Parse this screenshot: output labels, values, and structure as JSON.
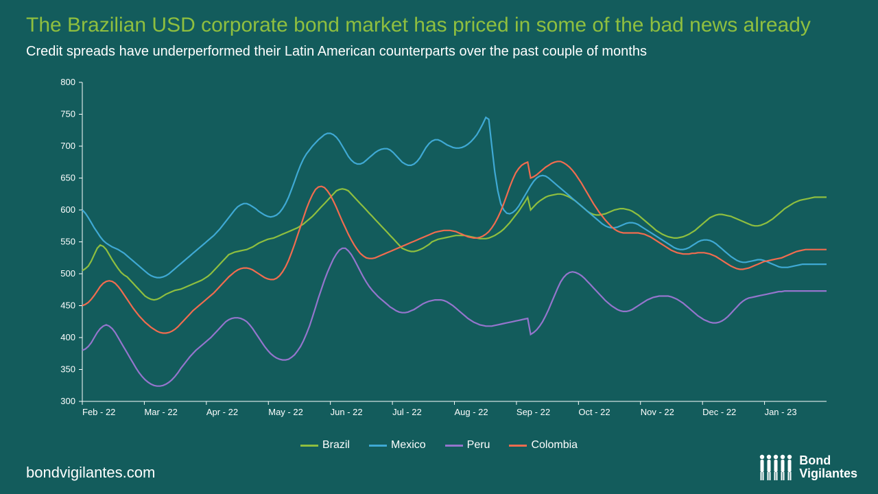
{
  "title": "The Brazilian USD corporate bond market has priced in some of the bad news already",
  "subtitle": "Credit spreads have underperformed their Latin American counterparts over the past couple of months",
  "footer_url": "bondvigilantes.com",
  "brand_line1": "Bond",
  "brand_line2": "Vigilantes",
  "chart": {
    "type": "line",
    "background_color": "#135c5c",
    "text_color": "#ffffff",
    "title_color": "#8fbf3f",
    "axis_color": "#ffffff",
    "ylim": [
      300,
      800
    ],
    "ytick_step": 50,
    "xticks": [
      "Feb - 22",
      "Mar - 22",
      "Apr - 22",
      "May - 22",
      "Jun - 22",
      "Jul - 22",
      "Aug - 22",
      "Sep - 22",
      "Oct - 22",
      "Nov - 22",
      "Dec - 22",
      "Jan - 23"
    ],
    "x_count": 250,
    "line_width": 2.2,
    "series": [
      {
        "name": "Brazil",
        "color": "#8fbf3f",
        "values": [
          505,
          508,
          512,
          520,
          530,
          540,
          545,
          543,
          538,
          530,
          522,
          515,
          508,
          502,
          498,
          495,
          490,
          485,
          480,
          475,
          470,
          465,
          462,
          460,
          459,
          460,
          462,
          465,
          468,
          470,
          472,
          474,
          475,
          476,
          478,
          480,
          482,
          484,
          486,
          488,
          490,
          493,
          496,
          500,
          505,
          510,
          515,
          520,
          525,
          530,
          532,
          534,
          535,
          536,
          537,
          538,
          540,
          542,
          545,
          548,
          550,
          552,
          554,
          555,
          556,
          558,
          560,
          562,
          564,
          566,
          568,
          570,
          572,
          575,
          578,
          582,
          586,
          590,
          595,
          600,
          605,
          610,
          615,
          620,
          625,
          630,
          632,
          633,
          632,
          630,
          625,
          620,
          615,
          610,
          605,
          600,
          595,
          590,
          585,
          580,
          575,
          570,
          565,
          560,
          555,
          550,
          545,
          540,
          538,
          536,
          535,
          535,
          536,
          538,
          540,
          543,
          546,
          550,
          552,
          554,
          555,
          556,
          557,
          558,
          559,
          560,
          560,
          560,
          560,
          559,
          558,
          557,
          556,
          555,
          555,
          555,
          556,
          558,
          560,
          563,
          566,
          570,
          575,
          580,
          586,
          592,
          598,
          605,
          612,
          620,
          600,
          605,
          610,
          614,
          617,
          620,
          622,
          623,
          624,
          625,
          625,
          624,
          622,
          620,
          617,
          614,
          610,
          606,
          602,
          598,
          595,
          593,
          592,
          592,
          593,
          594,
          596,
          598,
          600,
          601,
          602,
          602,
          601,
          600,
          598,
          595,
          592,
          588,
          584,
          580,
          576,
          572,
          568,
          565,
          562,
          560,
          558,
          557,
          556,
          556,
          557,
          558,
          560,
          562,
          565,
          568,
          572,
          576,
          580,
          584,
          588,
          590,
          592,
          593,
          593,
          592,
          591,
          590,
          588,
          586,
          584,
          582,
          580,
          578,
          576,
          575,
          575,
          576,
          578,
          580,
          583,
          586,
          590,
          594,
          598,
          602,
          605,
          608,
          611,
          613,
          615,
          616,
          617,
          618,
          619,
          620,
          620,
          620,
          620,
          620
        ]
      },
      {
        "name": "Mexico",
        "color": "#3fa9d4",
        "values": [
          600,
          595,
          588,
          580,
          572,
          565,
          558,
          552,
          548,
          545,
          542,
          540,
          538,
          535,
          532,
          528,
          524,
          520,
          516,
          512,
          508,
          504,
          500,
          497,
          495,
          494,
          494,
          495,
          497,
          500,
          504,
          508,
          512,
          516,
          520,
          524,
          528,
          532,
          536,
          540,
          544,
          548,
          552,
          556,
          560,
          565,
          570,
          576,
          582,
          588,
          594,
          600,
          605,
          608,
          610,
          610,
          608,
          605,
          602,
          598,
          595,
          592,
          590,
          589,
          590,
          592,
          596,
          602,
          610,
          620,
          632,
          645,
          658,
          670,
          680,
          688,
          694,
          700,
          705,
          710,
          714,
          718,
          720,
          720,
          718,
          714,
          708,
          700,
          692,
          684,
          678,
          674,
          672,
          672,
          674,
          678,
          682,
          686,
          690,
          693,
          695,
          696,
          696,
          694,
          690,
          685,
          680,
          675,
          672,
          670,
          670,
          672,
          676,
          682,
          690,
          698,
          704,
          708,
          710,
          710,
          708,
          705,
          702,
          700,
          698,
          697,
          697,
          698,
          700,
          703,
          707,
          712,
          718,
          726,
          735,
          745,
          742,
          700,
          660,
          630,
          610,
          600,
          595,
          594,
          596,
          600,
          606,
          614,
          622,
          630,
          638,
          645,
          650,
          653,
          654,
          653,
          650,
          646,
          642,
          638,
          634,
          630,
          626,
          622,
          618,
          614,
          610,
          606,
          602,
          598,
          594,
          590,
          586,
          582,
          578,
          575,
          573,
          572,
          572,
          573,
          575,
          577,
          579,
          580,
          580,
          579,
          577,
          574,
          571,
          568,
          565,
          562,
          559,
          556,
          553,
          550,
          547,
          544,
          541,
          539,
          538,
          538,
          539,
          541,
          544,
          547,
          550,
          552,
          553,
          553,
          552,
          550,
          547,
          543,
          539,
          535,
          531,
          527,
          524,
          521,
          519,
          518,
          518,
          519,
          520,
          521,
          522,
          522,
          521,
          519,
          517,
          515,
          513,
          511,
          510,
          510,
          510,
          511,
          512,
          513,
          514,
          515,
          515,
          515,
          515,
          515,
          515,
          515,
          515,
          515
        ]
      },
      {
        "name": "Peru",
        "color": "#9575cd",
        "values": [
          380,
          382,
          386,
          392,
          400,
          408,
          414,
          418,
          420,
          418,
          414,
          408,
          400,
          392,
          384,
          376,
          368,
          360,
          352,
          345,
          339,
          334,
          330,
          327,
          325,
          324,
          324,
          325,
          327,
          330,
          334,
          339,
          345,
          352,
          358,
          364,
          370,
          375,
          380,
          384,
          388,
          392,
          396,
          400,
          405,
          410,
          415,
          420,
          425,
          428,
          430,
          431,
          431,
          430,
          428,
          425,
          420,
          414,
          407,
          400,
          393,
          386,
          380,
          375,
          371,
          368,
          366,
          365,
          365,
          366,
          369,
          373,
          379,
          386,
          395,
          406,
          418,
          432,
          447,
          462,
          476,
          490,
          502,
          513,
          523,
          531,
          537,
          540,
          540,
          536,
          530,
          522,
          513,
          504,
          495,
          487,
          480,
          474,
          469,
          464,
          460,
          456,
          452,
          448,
          445,
          442,
          440,
          439,
          439,
          440,
          442,
          444,
          447,
          450,
          453,
          455,
          457,
          458,
          459,
          459,
          459,
          458,
          456,
          453,
          450,
          446,
          442,
          438,
          434,
          430,
          427,
          424,
          422,
          420,
          419,
          418,
          418,
          418,
          419,
          420,
          421,
          422,
          423,
          424,
          425,
          426,
          427,
          428,
          429,
          430,
          405,
          408,
          412,
          418,
          425,
          434,
          444,
          455,
          466,
          477,
          487,
          494,
          499,
          502,
          503,
          502,
          500,
          497,
          493,
          488,
          483,
          478,
          473,
          468,
          463,
          458,
          454,
          450,
          447,
          444,
          442,
          441,
          441,
          442,
          444,
          447,
          450,
          453,
          456,
          459,
          461,
          463,
          464,
          465,
          465,
          465,
          465,
          464,
          462,
          460,
          457,
          454,
          450,
          446,
          442,
          438,
          434,
          431,
          428,
          426,
          424,
          423,
          423,
          424,
          426,
          429,
          433,
          438,
          443,
          448,
          453,
          457,
          460,
          462,
          463,
          464,
          465,
          466,
          467,
          468,
          469,
          470,
          471,
          472,
          472,
          473,
          473,
          473,
          473,
          473,
          473,
          473,
          473,
          473,
          473,
          473,
          473,
          473,
          473,
          473
        ]
      },
      {
        "name": "Colombia",
        "color": "#f26c4f",
        "values": [
          450,
          452,
          455,
          460,
          466,
          473,
          480,
          485,
          488,
          489,
          488,
          485,
          480,
          474,
          467,
          460,
          453,
          446,
          440,
          434,
          429,
          424,
          420,
          416,
          413,
          410,
          408,
          407,
          407,
          408,
          410,
          413,
          417,
          422,
          427,
          432,
          437,
          442,
          446,
          450,
          454,
          458,
          462,
          466,
          470,
          475,
          480,
          485,
          490,
          495,
          499,
          503,
          506,
          508,
          509,
          509,
          508,
          506,
          503,
          500,
          497,
          494,
          492,
          491,
          491,
          493,
          497,
          503,
          511,
          521,
          533,
          546,
          560,
          574,
          588,
          602,
          614,
          624,
          632,
          636,
          637,
          635,
          630,
          623,
          614,
          604,
          593,
          582,
          572,
          562,
          553,
          545,
          538,
          532,
          528,
          525,
          524,
          524,
          525,
          527,
          529,
          531,
          533,
          535,
          537,
          539,
          541,
          543,
          545,
          547,
          549,
          551,
          553,
          555,
          557,
          559,
          561,
          563,
          565,
          566,
          567,
          568,
          568,
          568,
          567,
          566,
          564,
          562,
          560,
          558,
          557,
          556,
          556,
          557,
          559,
          562,
          566,
          572,
          579,
          588,
          598,
          610,
          623,
          636,
          648,
          658,
          665,
          670,
          673,
          675,
          650,
          652,
          655,
          659,
          663,
          667,
          670,
          673,
          675,
          676,
          676,
          674,
          671,
          667,
          662,
          656,
          649,
          642,
          634,
          626,
          618,
          610,
          603,
          596,
          590,
          584,
          579,
          574,
          570,
          567,
          565,
          564,
          564,
          564,
          564,
          564,
          564,
          563,
          562,
          560,
          558,
          555,
          552,
          549,
          546,
          543,
          540,
          537,
          535,
          533,
          532,
          531,
          531,
          531,
          532,
          532,
          533,
          533,
          533,
          532,
          531,
          529,
          527,
          524,
          521,
          518,
          515,
          512,
          510,
          508,
          507,
          507,
          508,
          509,
          511,
          513,
          515,
          517,
          519,
          520,
          521,
          522,
          523,
          524,
          525,
          527,
          529,
          531,
          533,
          535,
          536,
          537,
          538,
          538,
          538,
          538,
          538,
          538,
          538,
          538
        ]
      }
    ]
  }
}
